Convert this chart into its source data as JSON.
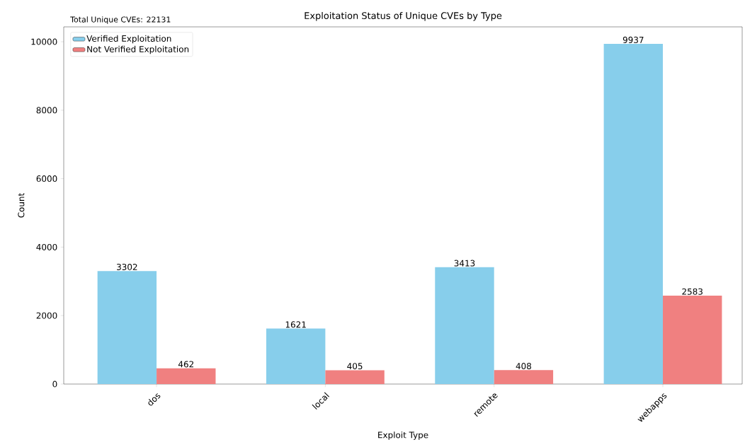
{
  "chart_data": {
    "type": "bar",
    "title": "Exploitation Status of Unique CVEs by Type",
    "xlabel": "Exploit Type",
    "ylabel": "Count",
    "annotations": [
      "Total Unique CVEs: 22131"
    ],
    "categories": [
      "dos",
      "local",
      "remote",
      "webapps"
    ],
    "series": [
      {
        "name": "Verified Exploitation",
        "color": "#87ceeb",
        "values": [
          3302,
          1621,
          3413,
          9937
        ]
      },
      {
        "name": "Not Verified Exploitation",
        "color": "#f08080",
        "values": [
          462,
          405,
          408,
          2583
        ]
      }
    ],
    "ylim": [
      0,
      10434
    ],
    "yticks": [
      0,
      2000,
      4000,
      6000,
      8000,
      10000
    ],
    "data_labels": true,
    "legend": "top left",
    "grid": false
  }
}
